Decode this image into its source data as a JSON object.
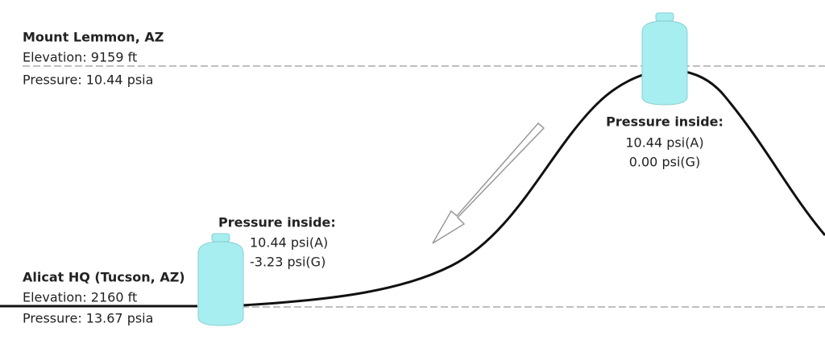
{
  "locations": [
    {
      "name": "Mount Lemmon, AZ",
      "elevation": "Elevation: 9159 ft",
      "pressure": "Pressure: 10.44 psia"
    },
    {
      "name": "Alicat HQ (Tucson, AZ)",
      "elevation": "Elevation: 2160 ft",
      "pressure": "Pressure: 13.67 psia"
    }
  ],
  "containers": [
    {
      "heading": "Pressure inside:",
      "absolute": "10.44 psi(A)",
      "gauge": "0.00 psi(G)"
    },
    {
      "heading": "Pressure inside:",
      "absolute": "10.44 psi(A)",
      "gauge": "-3.23 psi(G)"
    }
  ]
}
